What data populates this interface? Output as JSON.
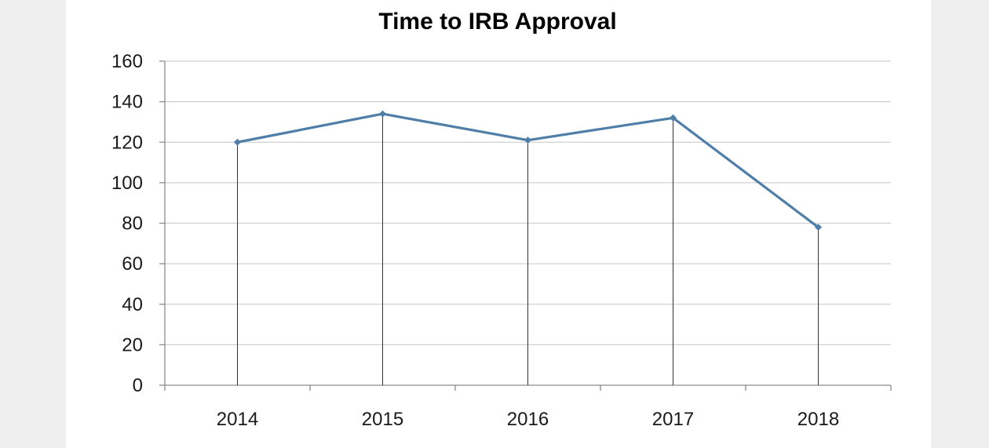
{
  "chart_data": {
    "type": "line",
    "title": "Time to IRB Approval",
    "xlabel": "",
    "ylabel": "",
    "categories": [
      "2014",
      "2015",
      "2016",
      "2017",
      "2018"
    ],
    "series": [
      {
        "values": [
          120,
          134,
          121,
          132,
          78
        ]
      }
    ],
    "ylim": [
      0,
      160
    ],
    "yticks": [
      "0",
      "20",
      "40",
      "60",
      "80",
      "100",
      "120",
      "140",
      "160"
    ],
    "grid": true,
    "drop_lines": true,
    "legend": "none",
    "colors": {
      "line": "#4f7ea8",
      "grid": "#d0d0d0",
      "axis": "#8c8c8c",
      "drop": "#333333"
    }
  }
}
